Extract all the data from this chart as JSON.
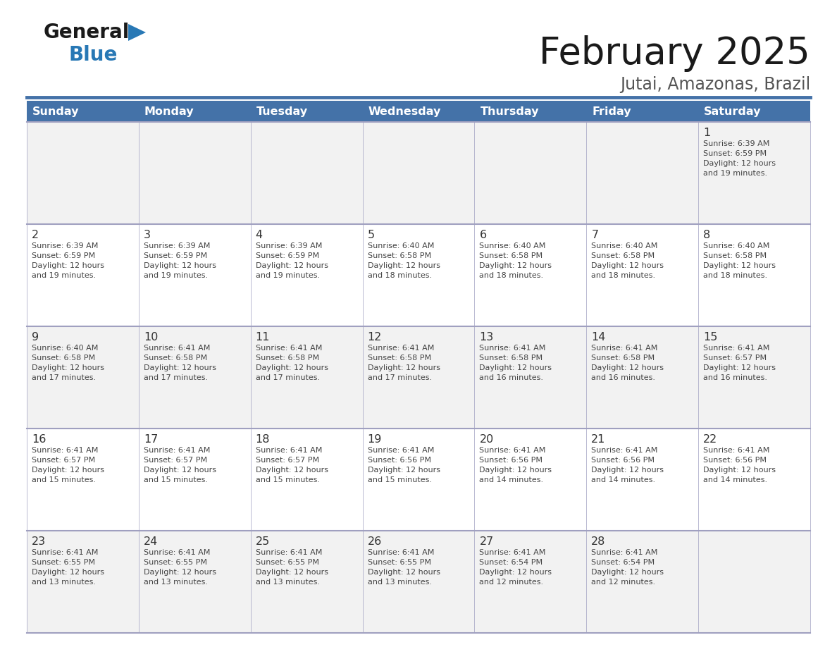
{
  "title": "February 2025",
  "subtitle": "Jutai, Amazonas, Brazil",
  "days_of_week": [
    "Sunday",
    "Monday",
    "Tuesday",
    "Wednesday",
    "Thursday",
    "Friday",
    "Saturday"
  ],
  "header_bg": "#4472a8",
  "header_text": "#ffffff",
  "row_bg_light": "#f2f2f2",
  "row_bg_white": "#ffffff",
  "cell_border_color": "#a0a0c0",
  "day_num_color": "#333333",
  "info_color": "#444444",
  "title_color": "#1a1a1a",
  "subtitle_color": "#555555",
  "logo_general_color": "#1a1a1a",
  "logo_blue_color": "#2878b5",
  "divider_color": "#4472a8",
  "calendar_data": [
    [
      null,
      null,
      null,
      null,
      null,
      null,
      {
        "day": 1,
        "sunrise": "6:39 AM",
        "sunset": "6:59 PM",
        "daylight": "12 hours and 19 minutes."
      }
    ],
    [
      {
        "day": 2,
        "sunrise": "6:39 AM",
        "sunset": "6:59 PM",
        "daylight": "12 hours and 19 minutes."
      },
      {
        "day": 3,
        "sunrise": "6:39 AM",
        "sunset": "6:59 PM",
        "daylight": "12 hours and 19 minutes."
      },
      {
        "day": 4,
        "sunrise": "6:39 AM",
        "sunset": "6:59 PM",
        "daylight": "12 hours and 19 minutes."
      },
      {
        "day": 5,
        "sunrise": "6:40 AM",
        "sunset": "6:58 PM",
        "daylight": "12 hours and 18 minutes."
      },
      {
        "day": 6,
        "sunrise": "6:40 AM",
        "sunset": "6:58 PM",
        "daylight": "12 hours and 18 minutes."
      },
      {
        "day": 7,
        "sunrise": "6:40 AM",
        "sunset": "6:58 PM",
        "daylight": "12 hours and 18 minutes."
      },
      {
        "day": 8,
        "sunrise": "6:40 AM",
        "sunset": "6:58 PM",
        "daylight": "12 hours and 18 minutes."
      }
    ],
    [
      {
        "day": 9,
        "sunrise": "6:40 AM",
        "sunset": "6:58 PM",
        "daylight": "12 hours and 17 minutes."
      },
      {
        "day": 10,
        "sunrise": "6:41 AM",
        "sunset": "6:58 PM",
        "daylight": "12 hours and 17 minutes."
      },
      {
        "day": 11,
        "sunrise": "6:41 AM",
        "sunset": "6:58 PM",
        "daylight": "12 hours and 17 minutes."
      },
      {
        "day": 12,
        "sunrise": "6:41 AM",
        "sunset": "6:58 PM",
        "daylight": "12 hours and 17 minutes."
      },
      {
        "day": 13,
        "sunrise": "6:41 AM",
        "sunset": "6:58 PM",
        "daylight": "12 hours and 16 minutes."
      },
      {
        "day": 14,
        "sunrise": "6:41 AM",
        "sunset": "6:58 PM",
        "daylight": "12 hours and 16 minutes."
      },
      {
        "day": 15,
        "sunrise": "6:41 AM",
        "sunset": "6:57 PM",
        "daylight": "12 hours and 16 minutes."
      }
    ],
    [
      {
        "day": 16,
        "sunrise": "6:41 AM",
        "sunset": "6:57 PM",
        "daylight": "12 hours and 15 minutes."
      },
      {
        "day": 17,
        "sunrise": "6:41 AM",
        "sunset": "6:57 PM",
        "daylight": "12 hours and 15 minutes."
      },
      {
        "day": 18,
        "sunrise": "6:41 AM",
        "sunset": "6:57 PM",
        "daylight": "12 hours and 15 minutes."
      },
      {
        "day": 19,
        "sunrise": "6:41 AM",
        "sunset": "6:56 PM",
        "daylight": "12 hours and 15 minutes."
      },
      {
        "day": 20,
        "sunrise": "6:41 AM",
        "sunset": "6:56 PM",
        "daylight": "12 hours and 14 minutes."
      },
      {
        "day": 21,
        "sunrise": "6:41 AM",
        "sunset": "6:56 PM",
        "daylight": "12 hours and 14 minutes."
      },
      {
        "day": 22,
        "sunrise": "6:41 AM",
        "sunset": "6:56 PM",
        "daylight": "12 hours and 14 minutes."
      }
    ],
    [
      {
        "day": 23,
        "sunrise": "6:41 AM",
        "sunset": "6:55 PM",
        "daylight": "12 hours and 13 minutes."
      },
      {
        "day": 24,
        "sunrise": "6:41 AM",
        "sunset": "6:55 PM",
        "daylight": "12 hours and 13 minutes."
      },
      {
        "day": 25,
        "sunrise": "6:41 AM",
        "sunset": "6:55 PM",
        "daylight": "12 hours and 13 minutes."
      },
      {
        "day": 26,
        "sunrise": "6:41 AM",
        "sunset": "6:55 PM",
        "daylight": "12 hours and 13 minutes."
      },
      {
        "day": 27,
        "sunrise": "6:41 AM",
        "sunset": "6:54 PM",
        "daylight": "12 hours and 12 minutes."
      },
      {
        "day": 28,
        "sunrise": "6:41 AM",
        "sunset": "6:54 PM",
        "daylight": "12 hours and 12 minutes."
      },
      null
    ]
  ],
  "fig_width": 11.88,
  "fig_height": 9.18,
  "dpi": 100
}
